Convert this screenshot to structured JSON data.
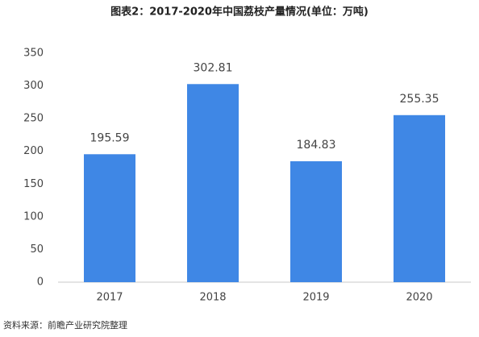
{
  "chart_data": {
    "type": "bar",
    "title": "图表2：2017-2020年中国荔枝产量情况(单位：万吨)",
    "categories": [
      "2017",
      "2018",
      "2019",
      "2020"
    ],
    "values": [
      195.59,
      302.81,
      184.83,
      255.35
    ],
    "color": "#3f87e5",
    "ylim": [
      0,
      350
    ],
    "yticks": [
      0,
      50,
      100,
      150,
      200,
      250,
      300,
      350
    ],
    "grid": false,
    "source": "资料来源：前瞻产业研究院整理"
  }
}
